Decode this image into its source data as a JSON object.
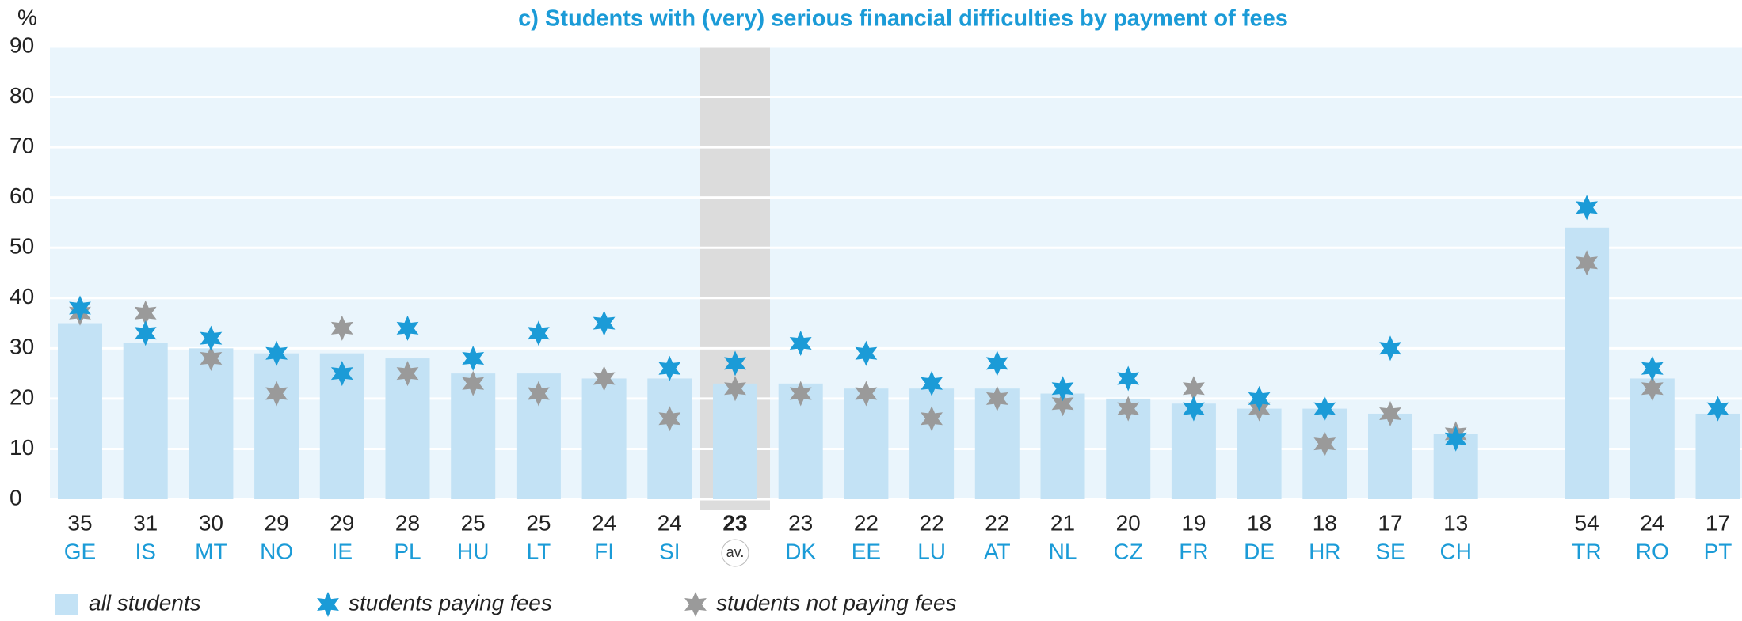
{
  "chart_data": {
    "type": "bar",
    "title": "c) Students with (very) serious financial difficulties by payment of fees",
    "y_label": "%",
    "categories": [
      "GE",
      "IS",
      "MT",
      "NO",
      "IE",
      "PL",
      "HU",
      "LT",
      "FI",
      "SI",
      "av.",
      "DK",
      "EE",
      "LU",
      "AT",
      "NL",
      "CZ",
      "FR",
      "DE",
      "HR",
      "SE",
      "CH",
      null,
      "TR",
      "RO",
      "PT"
    ],
    "series": [
      {
        "name": "all students",
        "color": "#c3e2f5",
        "values": [
          35,
          31,
          30,
          29,
          29,
          28,
          25,
          25,
          24,
          24,
          23,
          23,
          22,
          22,
          22,
          21,
          20,
          19,
          18,
          18,
          17,
          13,
          null,
          54,
          24,
          17
        ]
      },
      {
        "name": "students paying fees",
        "color": "#1b9bd7",
        "values": [
          38,
          33,
          32,
          29,
          25,
          34,
          28,
          33,
          35,
          26,
          27,
          31,
          29,
          23,
          27,
          22,
          24,
          18,
          20,
          18,
          30,
          12,
          null,
          58,
          26,
          18
        ]
      },
      {
        "name": "students not paying fees",
        "color": "#9a9a9a",
        "values": [
          37,
          37,
          28,
          21,
          34,
          25,
          23,
          21,
          24,
          16,
          22,
          21,
          21,
          16,
          20,
          19,
          18,
          22,
          18,
          11,
          17,
          13,
          null,
          47,
          22,
          null
        ]
      }
    ],
    "ylim": [
      0,
      90
    ],
    "yticks": [
      0,
      10,
      20,
      30,
      40,
      50,
      60,
      70,
      80,
      90
    ],
    "grid": true
  }
}
